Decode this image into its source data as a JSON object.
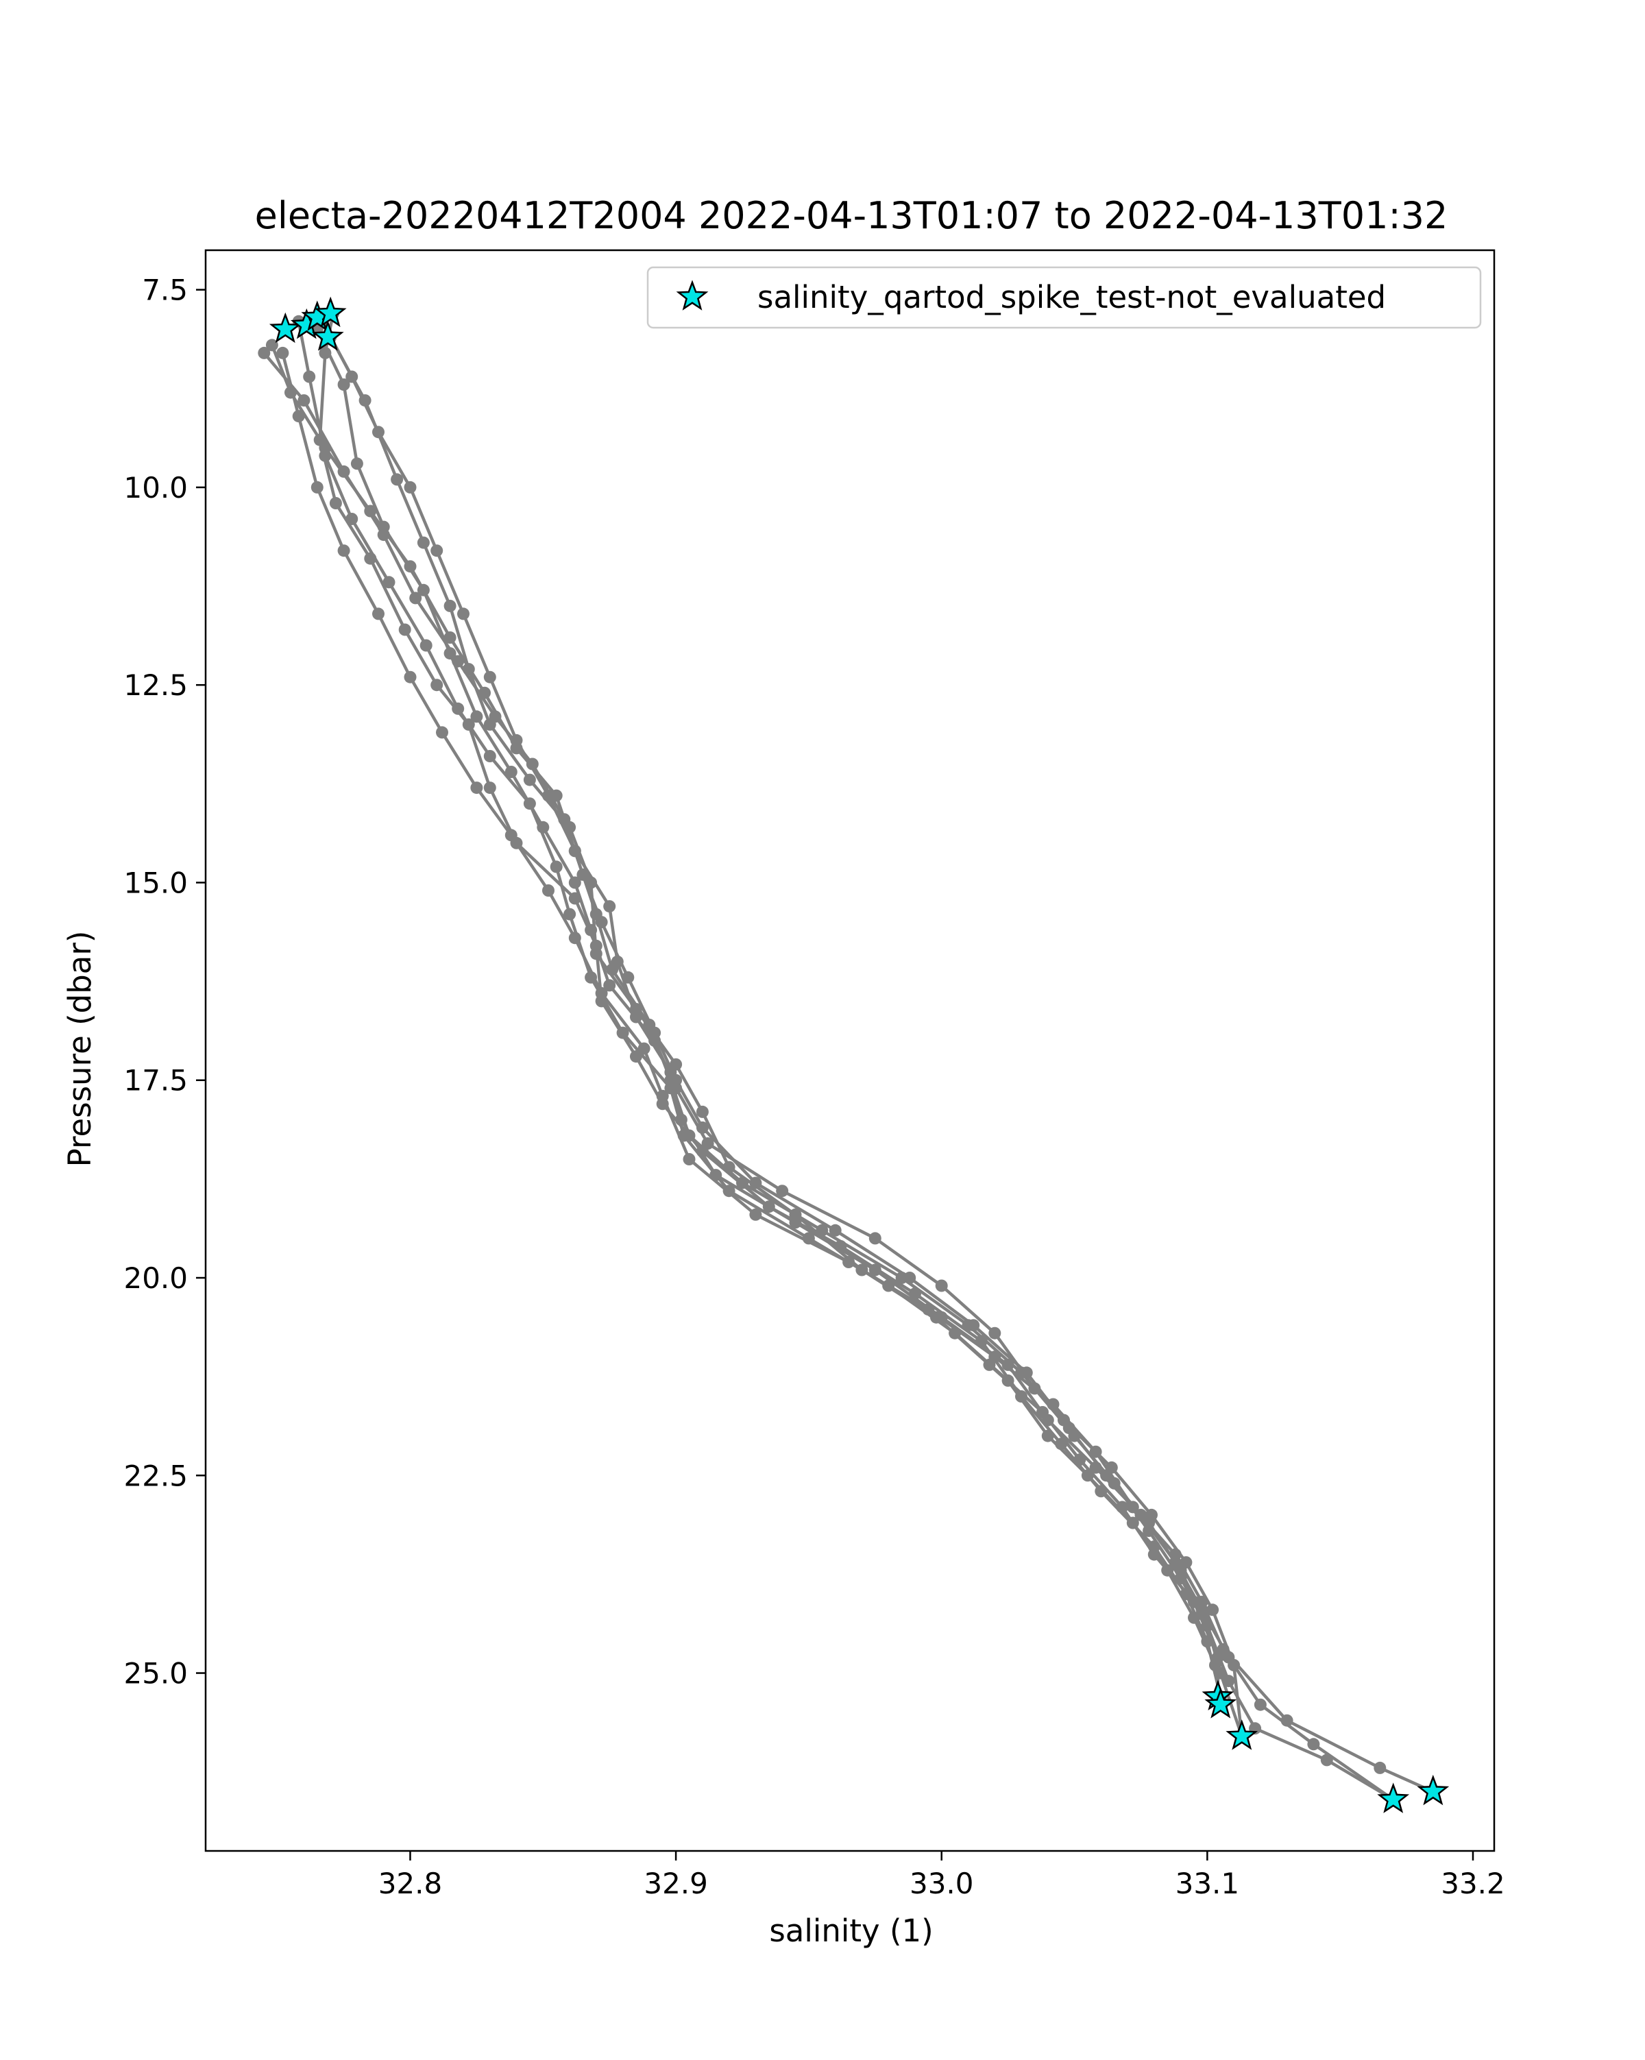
{
  "chart_data": {
    "type": "line",
    "title": "electa-20220412T2004 2022-04-13T01:07 to 2022-04-13T01:32",
    "xlabel": "salinity (1)",
    "ylabel": "Pressure (dbar)",
    "xlim": [
      32.723,
      33.208
    ],
    "ylim": [
      27.25,
      7.0
    ],
    "y_inverted": true,
    "grid": false,
    "legend": {
      "position": "top-right",
      "entries": [
        "salinity_qartod_spike_test-not_evaluated"
      ]
    },
    "xticks": [
      32.8,
      32.9,
      33.0,
      33.1,
      33.2
    ],
    "xtick_labels": [
      "32.8",
      "32.9",
      "33.0",
      "33.1",
      "33.2"
    ],
    "yticks": [
      7.5,
      10.0,
      12.5,
      15.0,
      17.5,
      20.0,
      22.5,
      25.0
    ],
    "ytick_labels": [
      "7.5",
      "10.0",
      "12.5",
      "15.0",
      "17.5",
      "20.0",
      "22.5",
      "25.0"
    ],
    "colors": {
      "profile": "#808080",
      "flag_marker": "#00e5e5",
      "flag_edge": "#000000"
    },
    "series": [
      {
        "points": [
          [
            32.771,
            7.8
          ],
          [
            32.768,
            8.3
          ],
          [
            32.766,
            9.4
          ],
          [
            32.772,
            10.2
          ],
          [
            32.785,
            10.9
          ],
          [
            32.798,
            11.8
          ],
          [
            32.81,
            12.5
          ],
          [
            32.822,
            13.0
          ],
          [
            32.83,
            13.8
          ],
          [
            32.84,
            14.5
          ],
          [
            32.862,
            15.2
          ],
          [
            32.87,
            15.8
          ],
          [
            32.872,
            16.5
          ],
          [
            32.885,
            17.2
          ],
          [
            32.895,
            17.8
          ],
          [
            32.91,
            18.4
          ],
          [
            32.935,
            19.1
          ],
          [
            32.962,
            19.6
          ],
          [
            32.99,
            20.2
          ],
          [
            33.015,
            20.8
          ],
          [
            33.03,
            21.5
          ],
          [
            33.045,
            22.1
          ],
          [
            33.06,
            22.7
          ],
          [
            33.08,
            23.4
          ],
          [
            33.092,
            24.0
          ],
          [
            33.1,
            24.6
          ],
          [
            33.105,
            25.3
          ]
        ]
      },
      {
        "points": [
          [
            32.758,
            7.9
          ],
          [
            32.762,
            8.6
          ],
          [
            32.768,
            9.6
          ],
          [
            32.778,
            10.4
          ],
          [
            32.792,
            11.2
          ],
          [
            32.806,
            12.0
          ],
          [
            32.818,
            12.8
          ],
          [
            32.83,
            13.4
          ],
          [
            32.845,
            14.0
          ],
          [
            32.855,
            14.8
          ],
          [
            32.86,
            15.4
          ],
          [
            32.868,
            16.2
          ],
          [
            32.88,
            16.9
          ],
          [
            32.898,
            17.6
          ],
          [
            32.903,
            18.2
          ],
          [
            32.92,
            18.9
          ],
          [
            32.95,
            19.5
          ],
          [
            32.98,
            20.1
          ],
          [
            33.005,
            20.7
          ],
          [
            33.025,
            21.3
          ],
          [
            33.04,
            22.0
          ],
          [
            33.055,
            22.5
          ],
          [
            33.072,
            23.1
          ],
          [
            33.085,
            23.7
          ],
          [
            33.095,
            24.3
          ],
          [
            33.103,
            24.9
          ],
          [
            33.105,
            25.4
          ]
        ]
      },
      {
        "points": [
          [
            32.765,
            8.0
          ],
          [
            32.775,
            8.7
          ],
          [
            32.78,
            9.7
          ],
          [
            32.79,
            10.5
          ],
          [
            32.805,
            11.3
          ],
          [
            32.815,
            12.1
          ],
          [
            32.825,
            12.9
          ],
          [
            32.838,
            13.6
          ],
          [
            32.85,
            14.3
          ],
          [
            32.862,
            15.0
          ],
          [
            32.868,
            15.6
          ],
          [
            32.875,
            16.3
          ],
          [
            32.892,
            17.0
          ],
          [
            32.9,
            17.6
          ],
          [
            32.912,
            18.3
          ],
          [
            32.94,
            18.9
          ],
          [
            32.975,
            19.5
          ],
          [
            33.0,
            20.1
          ],
          [
            33.02,
            20.7
          ],
          [
            33.035,
            21.4
          ],
          [
            33.05,
            22.0
          ],
          [
            33.065,
            22.6
          ],
          [
            33.078,
            23.2
          ],
          [
            33.09,
            23.8
          ],
          [
            33.1,
            24.4
          ],
          [
            33.105,
            25.0
          ],
          [
            33.113,
            25.8
          ]
        ]
      },
      {
        "points": [
          [
            32.752,
            8.3
          ],
          [
            32.758,
            9.1
          ],
          [
            32.765,
            10.0
          ],
          [
            32.775,
            10.8
          ],
          [
            32.788,
            11.6
          ],
          [
            32.8,
            12.4
          ],
          [
            32.812,
            13.1
          ],
          [
            32.825,
            13.8
          ],
          [
            32.838,
            14.4
          ],
          [
            32.852,
            15.1
          ],
          [
            32.862,
            15.7
          ],
          [
            32.872,
            16.4
          ],
          [
            32.888,
            17.1
          ],
          [
            32.895,
            17.7
          ],
          [
            32.905,
            18.5
          ],
          [
            32.93,
            19.2
          ],
          [
            32.965,
            19.8
          ],
          [
            32.995,
            20.4
          ],
          [
            33.02,
            21.0
          ],
          [
            33.042,
            21.6
          ],
          [
            33.058,
            22.2
          ],
          [
            33.072,
            22.9
          ],
          [
            33.088,
            23.5
          ],
          [
            33.098,
            24.1
          ],
          [
            33.106,
            24.7
          ],
          [
            33.13,
            25.6
          ],
          [
            33.165,
            26.2
          ],
          [
            33.185,
            26.5
          ]
        ]
      },
      {
        "points": [
          [
            32.748,
            8.2
          ],
          [
            32.755,
            8.8
          ],
          [
            32.768,
            9.5
          ],
          [
            32.785,
            10.3
          ],
          [
            32.8,
            11.0
          ],
          [
            32.815,
            11.9
          ],
          [
            32.828,
            12.6
          ],
          [
            32.84,
            13.3
          ],
          [
            32.855,
            13.9
          ],
          [
            32.862,
            14.6
          ],
          [
            32.875,
            15.3
          ],
          [
            32.878,
            16.0
          ],
          [
            32.885,
            16.7
          ],
          [
            32.898,
            17.4
          ],
          [
            32.902,
            18.0
          ],
          [
            32.915,
            18.7
          ],
          [
            32.945,
            19.3
          ],
          [
            32.975,
            19.9
          ],
          [
            33.0,
            20.5
          ],
          [
            33.025,
            21.1
          ],
          [
            33.04,
            21.8
          ],
          [
            33.058,
            22.4
          ],
          [
            33.075,
            23.0
          ],
          [
            33.088,
            23.6
          ],
          [
            33.098,
            24.2
          ],
          [
            33.108,
            24.8
          ],
          [
            33.12,
            25.4
          ],
          [
            33.14,
            25.9
          ],
          [
            33.17,
            26.6
          ]
        ]
      },
      {
        "points": [
          [
            32.745,
            8.3
          ],
          [
            32.76,
            8.9
          ],
          [
            32.775,
            9.8
          ],
          [
            32.79,
            10.6
          ],
          [
            32.802,
            11.4
          ],
          [
            32.818,
            12.2
          ],
          [
            32.832,
            12.9
          ],
          [
            32.846,
            13.5
          ],
          [
            32.858,
            14.2
          ],
          [
            32.865,
            14.9
          ],
          [
            32.872,
            15.5
          ],
          [
            32.882,
            16.2
          ],
          [
            32.892,
            16.9
          ],
          [
            32.9,
            17.5
          ],
          [
            32.91,
            18.1
          ],
          [
            32.93,
            18.8
          ],
          [
            32.96,
            19.4
          ],
          [
            32.988,
            20.0
          ],
          [
            33.012,
            20.6
          ],
          [
            33.032,
            21.2
          ],
          [
            33.048,
            21.9
          ],
          [
            33.062,
            22.5
          ],
          [
            33.078,
            23.1
          ],
          [
            33.09,
            23.7
          ],
          [
            33.1,
            24.4
          ],
          [
            33.108,
            25.1
          ],
          [
            33.118,
            25.7
          ],
          [
            33.145,
            26.1
          ],
          [
            33.17,
            26.6
          ]
        ]
      },
      {
        "points": [
          [
            32.77,
            8.1
          ],
          [
            32.783,
            8.9
          ],
          [
            32.795,
            9.9
          ],
          [
            32.805,
            10.7
          ],
          [
            32.815,
            11.5
          ],
          [
            32.822,
            12.3
          ],
          [
            32.83,
            13.0
          ],
          [
            32.845,
            13.7
          ],
          [
            32.86,
            14.3
          ],
          [
            32.868,
            15.0
          ],
          [
            32.87,
            15.9
          ],
          [
            32.885,
            16.6
          ],
          [
            32.9,
            17.3
          ],
          [
            32.91,
            17.9
          ],
          [
            32.92,
            18.6
          ],
          [
            32.945,
            19.2
          ],
          [
            32.97,
            19.9
          ],
          [
            32.998,
            20.5
          ],
          [
            33.018,
            21.1
          ],
          [
            33.038,
            21.7
          ],
          [
            33.052,
            22.3
          ],
          [
            33.068,
            22.9
          ],
          [
            33.08,
            23.5
          ],
          [
            33.095,
            24.1
          ],
          [
            33.104,
            24.8
          ],
          [
            33.104,
            25.3
          ]
        ]
      },
      {
        "points": [
          [
            32.767,
            7.9
          ],
          [
            32.778,
            8.6
          ],
          [
            32.788,
            9.3
          ],
          [
            32.8,
            10.0
          ],
          [
            32.81,
            10.8
          ],
          [
            32.82,
            11.6
          ],
          [
            32.83,
            12.4
          ],
          [
            32.84,
            13.2
          ],
          [
            32.852,
            13.9
          ],
          [
            32.862,
            14.6
          ],
          [
            32.87,
            15.4
          ],
          [
            32.876,
            16.1
          ],
          [
            32.89,
            16.8
          ],
          [
            32.898,
            17.5
          ],
          [
            32.905,
            18.2
          ],
          [
            32.925,
            18.8
          ],
          [
            32.955,
            19.4
          ],
          [
            32.985,
            20.0
          ],
          [
            33.01,
            20.6
          ],
          [
            33.03,
            21.2
          ],
          [
            33.046,
            21.8
          ],
          [
            33.064,
            22.4
          ],
          [
            33.079,
            23.0
          ],
          [
            33.092,
            23.6
          ],
          [
            33.102,
            24.2
          ],
          [
            33.11,
            24.9
          ],
          [
            33.113,
            25.8
          ]
        ]
      }
    ],
    "flagged_points": [
      [
        32.753,
        8.0
      ],
      [
        32.761,
        7.95
      ],
      [
        32.765,
        7.85
      ],
      [
        32.77,
        7.8
      ],
      [
        32.769,
        8.1
      ],
      [
        33.104,
        25.3
      ],
      [
        33.105,
        25.4
      ],
      [
        33.113,
        25.8
      ],
      [
        33.17,
        26.6
      ],
      [
        33.185,
        26.5
      ]
    ]
  }
}
